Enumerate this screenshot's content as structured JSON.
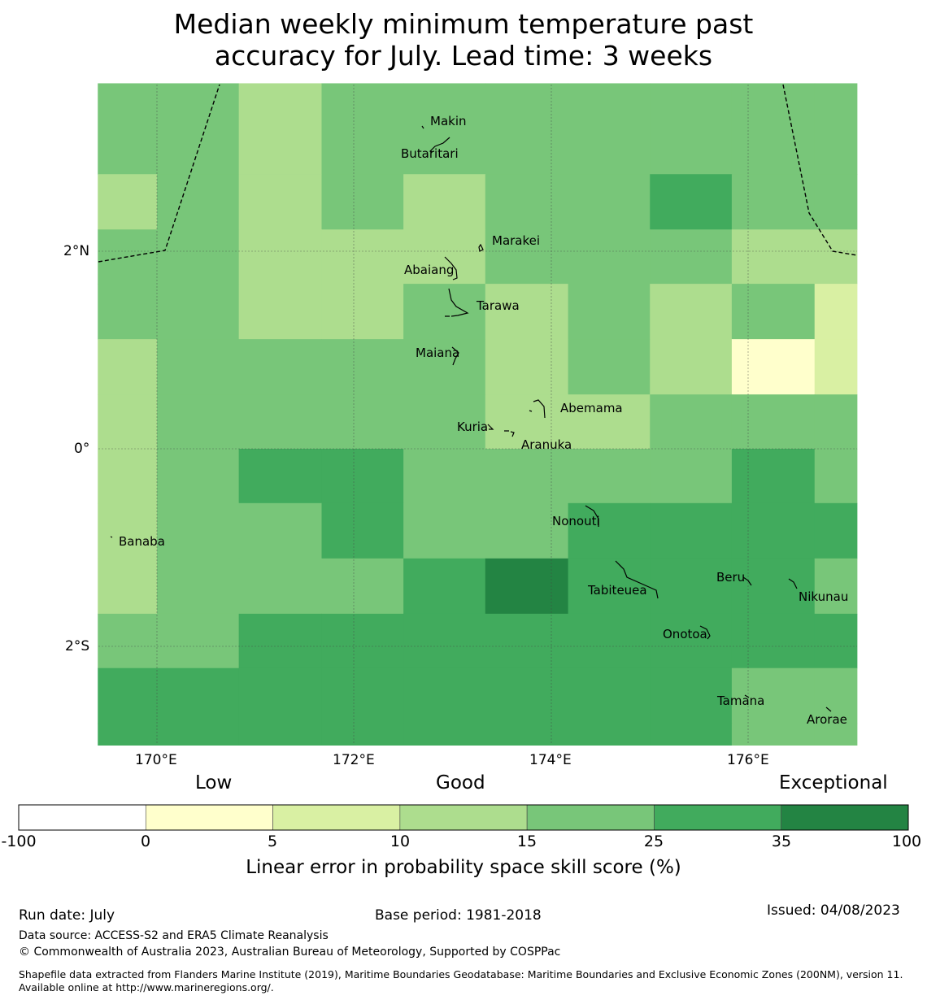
{
  "title_line1": "Median weekly minimum temperature past",
  "title_line2": "accuracy for July. Lead time: 3 weeks",
  "axes": {
    "x_ticks": [
      "170°E",
      "172°E",
      "174°E",
      "176°E"
    ],
    "y_ticks": [
      "2°N",
      "0°",
      "2°S"
    ]
  },
  "islands": [
    {
      "name": "Makin"
    },
    {
      "name": "Butaritari"
    },
    {
      "name": "Marakei"
    },
    {
      "name": "Abaiang"
    },
    {
      "name": "Tarawa"
    },
    {
      "name": "Maiana"
    },
    {
      "name": "Abemama"
    },
    {
      "name": "Kuria"
    },
    {
      "name": "Aranuka"
    },
    {
      "name": "Nonouti"
    },
    {
      "name": "Banaba"
    },
    {
      "name": "Tabiteuea"
    },
    {
      "name": "Beru"
    },
    {
      "name": "Nikunau"
    },
    {
      "name": "Onotoa"
    },
    {
      "name": "Tamana"
    },
    {
      "name": "Arorae"
    }
  ],
  "skill_grid": {
    "x_edges_deg_e": [
      169.4,
      170.0,
      170.83,
      171.67,
      172.5,
      173.33,
      174.17,
      175.0,
      175.83,
      176.67,
      177.1
    ],
    "y_edges_deg": [
      3.7,
      2.78,
      2.22,
      1.67,
      1.11,
      0.55,
      0.0,
      -0.55,
      -1.11,
      -1.67,
      -2.22,
      -2.78,
      -3.0
    ],
    "classes": [
      [
        4,
        4,
        3,
        4,
        4,
        4,
        4,
        4,
        4,
        4
      ],
      [
        3,
        4,
        3,
        4,
        3,
        4,
        4,
        5,
        4,
        4
      ],
      [
        4,
        4,
        3,
        3,
        3,
        4,
        4,
        4,
        3,
        3
      ],
      [
        4,
        4,
        3,
        3,
        4,
        3,
        4,
        3,
        4,
        2
      ],
      [
        3,
        4,
        4,
        4,
        4,
        3,
        4,
        3,
        1,
        2
      ],
      [
        3,
        4,
        4,
        4,
        4,
        3,
        3,
        4,
        4,
        4
      ],
      [
        3,
        4,
        5,
        5,
        4,
        4,
        4,
        4,
        5,
        4
      ],
      [
        3,
        4,
        4,
        5,
        4,
        4,
        5,
        5,
        5,
        5
      ],
      [
        3,
        4,
        4,
        4,
        5,
        6,
        5,
        5,
        5,
        4
      ],
      [
        4,
        4,
        5,
        5,
        5,
        5,
        5,
        5,
        5,
        5
      ],
      [
        5,
        5,
        5,
        5,
        5,
        5,
        5,
        5,
        4,
        4
      ],
      [
        5,
        5,
        5,
        5,
        5,
        5,
        5,
        5,
        4,
        4
      ]
    ]
  },
  "colorbar": {
    "ticks": [
      "-100",
      "0",
      "5",
      "10",
      "15",
      "25",
      "35",
      "100"
    ],
    "colors": [
      "#ffffff",
      "#ffffcc",
      "#d9f0a3",
      "#addd8e",
      "#78c679",
      "#41ab5d",
      "#238443"
    ],
    "category_low": "Low",
    "category_good": "Good",
    "category_exceptional": "Exceptional",
    "title": "Linear error in probability space skill score (%)"
  },
  "footer": {
    "run_date": "Run date: July",
    "base_period": "Base period: 1981-2018",
    "issued": "Issued: 04/08/2023",
    "data_source": "Data source: ACCESS-S2 and ERA5 Climate Reanalysis",
    "copyright": "© Commonwealth of Australia 2023, Australian Bureau of Meteorology, Supported by COSPPac",
    "shapefile": "Shapefile data extracted from Flanders Marine Institute (2019), Maritime Boundaries Geodatabase: Maritime Boundaries and Exclusive Economic Zones (200NM), version 11. Available online at http://www.marineregions.org/."
  }
}
